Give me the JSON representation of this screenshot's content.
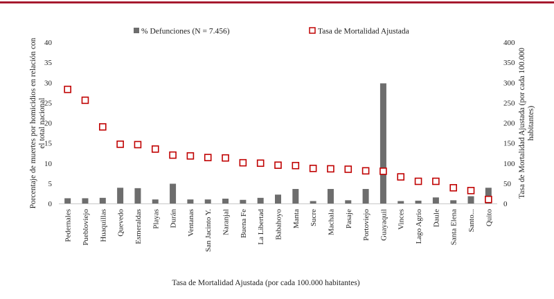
{
  "colors": {
    "accent_rule": "#a6192e",
    "bar": "#6d6d6d",
    "marker_stroke": "#c00000",
    "marker_fill": "#ffffff"
  },
  "chart_data": {
    "type": "bar",
    "categories": [
      "Pedernales",
      "Puebloviejo",
      "Huaquillas",
      "Quevedo",
      "Esmeraldas",
      "Playas",
      "Durán",
      "Ventanas",
      "San Jacinto Y.",
      "Naranjal",
      "Buena Fe",
      "La Libertad",
      "Babahoyo",
      "Manta",
      "Sucre",
      "Machala",
      "Pasaje",
      "Portoviejo",
      "Guayaquil",
      "Vinces",
      "Lago Agrio",
      "Daule",
      "Santa Elena",
      "Santo...",
      "Quito"
    ],
    "series": [
      {
        "name": "% Defunciones (N = 7.456)",
        "type": "bar",
        "axis": "left",
        "values": [
          1.3,
          1.3,
          1.4,
          3.9,
          3.8,
          1.0,
          4.9,
          1.0,
          1.0,
          1.2,
          0.9,
          1.4,
          2.2,
          3.6,
          0.6,
          3.6,
          0.8,
          3.6,
          29.8,
          0.6,
          0.7,
          1.5,
          0.8,
          1.8,
          3.9
        ]
      },
      {
        "name": "Tasa de Mortalidad Ajustada",
        "type": "marker",
        "axis": "right",
        "values": [
          283,
          256,
          190,
          147,
          146,
          135,
          120,
          118,
          114,
          113,
          101,
          100,
          95,
          94,
          87,
          86,
          85,
          81,
          80,
          66,
          55,
          55,
          39,
          32,
          10
        ]
      }
    ],
    "ylabel": "Porcentaje de muertes por homicidios en relación con el total nacional",
    "ylabel_lines": [
      "Porcentaje de muertes por homicidios en relación con",
      "el total nacional"
    ],
    "y2label": "Tasa de Mortalidad Ajustada (por cada 100.000 habitantes)",
    "y2label_lines": [
      "Tasa de Mortalidad Ajustada (por cada 100.000",
      "habitantes)"
    ],
    "xlabel": "Tasa de Mortalidad Ajustada (por cada 100.000 habitantes)",
    "ylim": [
      0,
      40
    ],
    "y_ticks": [
      "0",
      "5",
      "10",
      "15",
      "20",
      "25",
      "30",
      "35",
      "40"
    ],
    "y2lim": [
      0,
      400
    ],
    "y2_ticks": [
      "0",
      "50",
      "100",
      "150",
      "200",
      "250",
      "300",
      "350",
      "400"
    ],
    "grid": false,
    "legend_position": "top"
  }
}
